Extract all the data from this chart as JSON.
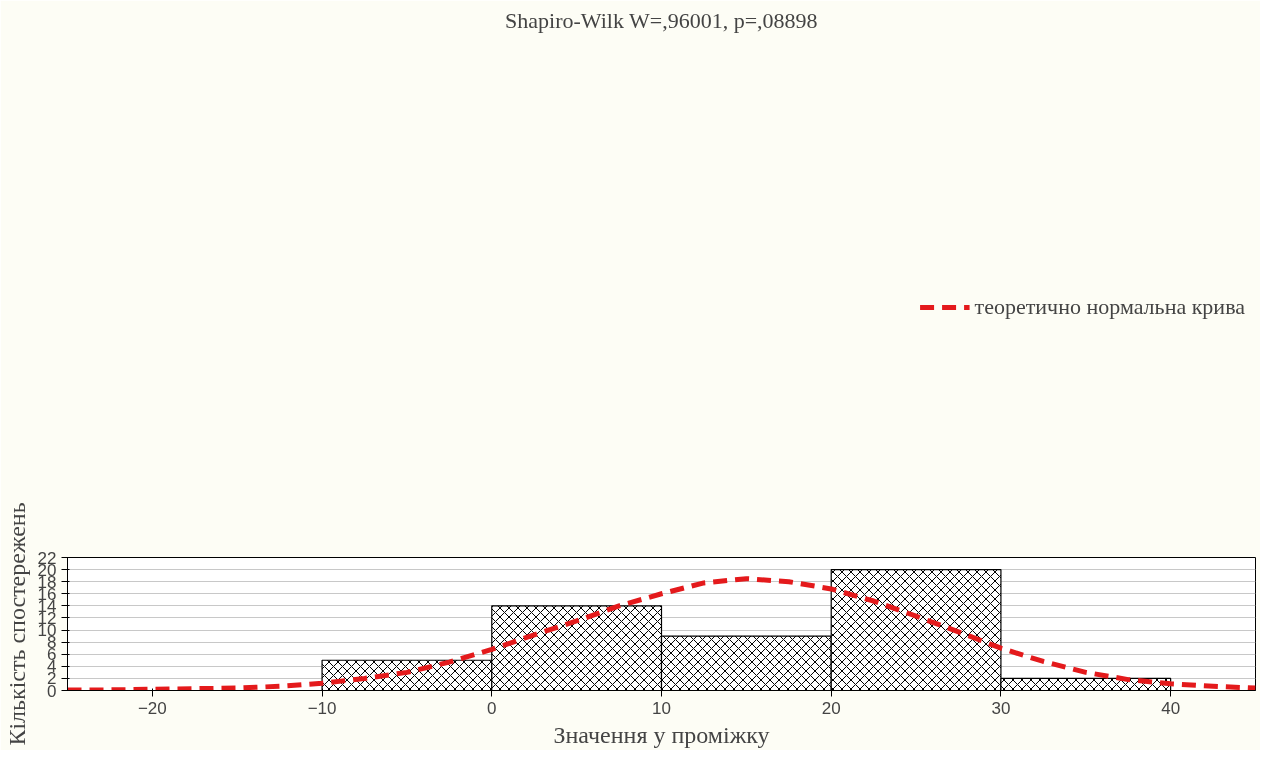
{
  "chart_data": {
    "type": "histogram",
    "title": "Shapiro-Wilk W=,96001, p=,08898",
    "xlabel": "Значення у проміжку",
    "ylabel": "Кількість спостережень",
    "bins": [
      -10,
      0,
      10,
      20,
      30,
      40
    ],
    "series": [
      {
        "color": "#000000",
        "values": [
          5,
          14,
          9,
          20,
          2
        ]
      },
      {
        "type": "line",
        "name": "теоретично нормальна крива",
        "color": "#e41a1c",
        "line_style": "dashed",
        "x": [
          -25,
          -22.5,
          -20,
          -17.5,
          -15,
          -12.5,
          -10,
          -7.5,
          -5,
          -2.5,
          0,
          2.5,
          5,
          7.5,
          10,
          12.5,
          15,
          17.5,
          20,
          22.5,
          25,
          27.5,
          30,
          32.5,
          35,
          37.5,
          40,
          42.5,
          45
        ],
        "values": [
          0.1,
          0.1,
          0.2,
          0.3,
          0.4,
          0.7,
          1.2,
          2.0,
          3.0,
          4.7,
          6.8,
          9.2,
          11.5,
          14,
          16,
          17.8,
          18.5,
          18.0,
          16.8,
          14.8,
          12.3,
          9.7,
          7.0,
          4.8,
          3.0,
          1.8,
          1.1,
          0.7,
          0.4
        ]
      }
    ],
    "xlim": [
      -25,
      45
    ],
    "ylim": [
      0,
      22
    ],
    "xticks": [
      -20,
      -10,
      0,
      10,
      20,
      30,
      40
    ],
    "yticks": [
      0,
      2,
      4,
      6,
      8,
      10,
      12,
      14,
      16,
      18,
      20,
      22
    ],
    "grid": "y",
    "legend": "top"
  }
}
